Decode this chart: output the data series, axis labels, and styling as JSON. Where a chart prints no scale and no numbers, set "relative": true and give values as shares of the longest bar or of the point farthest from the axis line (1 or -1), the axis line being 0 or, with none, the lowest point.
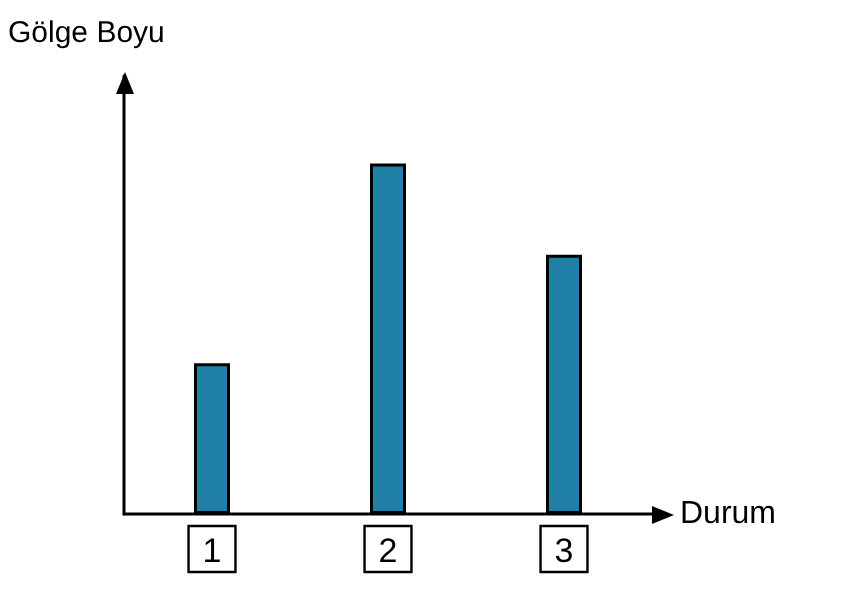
{
  "chart_data": {
    "type": "bar",
    "relative": true,
    "xlabel": "Durum",
    "ylabel": "Gölge Boyu",
    "categories": [
      "1",
      "2",
      "3"
    ],
    "values": [
      0.43,
      1,
      0.74
    ],
    "color": "#1f7fa6",
    "grid": false
  }
}
